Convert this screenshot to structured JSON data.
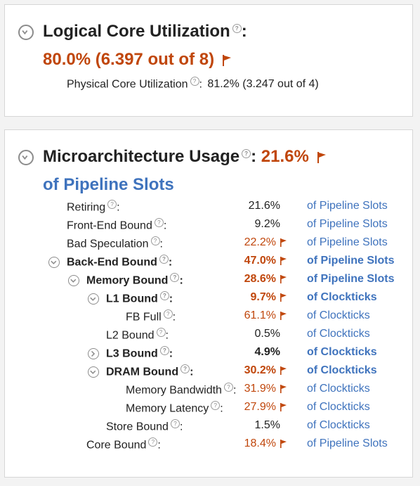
{
  "logical_core": {
    "title": "Logical Core Utilization",
    "colon": ":",
    "value": "80.0% (6.397 out of 8)",
    "physical_label": "Physical Core Utilization",
    "physical_colon": ":",
    "physical_value": "81.2% (3.247 out of 4)"
  },
  "microarch": {
    "title": "Microarchitecture Usage",
    "colon": ":",
    "value": "21.6%",
    "subtitle": "of Pipeline Slots",
    "rows": [
      {
        "label": "Retiring",
        "suffix": ":",
        "value": "21.6%",
        "flagged": false,
        "unit": "of Pipeline Slots",
        "level": 0,
        "bold": false,
        "toggle": "none"
      },
      {
        "label": "Front-End Bound",
        "suffix": ":",
        "value": "9.2%",
        "flagged": false,
        "unit": "of Pipeline Slots",
        "level": 0,
        "bold": false,
        "toggle": "none"
      },
      {
        "label": "Bad Speculation",
        "suffix": ":",
        "value": "22.2%",
        "flagged": true,
        "unit": "of Pipeline Slots",
        "level": 0,
        "bold": false,
        "toggle": "none"
      },
      {
        "label": "Back-End Bound",
        "suffix": ":",
        "value": "47.0%",
        "flagged": true,
        "unit": "of Pipeline Slots",
        "level": 0,
        "bold": true,
        "toggle": "expanded"
      },
      {
        "label": "Memory Bound",
        "suffix": ":",
        "value": "28.6%",
        "flagged": true,
        "unit": "of Pipeline Slots",
        "level": 1,
        "bold": true,
        "toggle": "expanded"
      },
      {
        "label": "L1 Bound",
        "suffix": ":",
        "value": "9.7%",
        "flagged": true,
        "unit": "of Clockticks",
        "level": 2,
        "bold": true,
        "toggle": "expanded"
      },
      {
        "label": "FB Full",
        "suffix": ":",
        "value": "61.1%",
        "flagged": true,
        "unit": "of Clockticks",
        "level": 3,
        "bold": false,
        "toggle": "none"
      },
      {
        "label": "L2 Bound",
        "suffix": ":",
        "value": "0.5%",
        "flagged": false,
        "unit": "of Clockticks",
        "level": 2,
        "bold": false,
        "toggle": "none"
      },
      {
        "label": "L3 Bound",
        "suffix": ":",
        "value": "4.9%",
        "flagged": false,
        "unit": "of Clockticks",
        "level": 2,
        "bold": true,
        "toggle": "collapsed"
      },
      {
        "label": "DRAM Bound",
        "suffix": ":",
        "value": "30.2%",
        "flagged": true,
        "unit": "of Clockticks",
        "level": 2,
        "bold": true,
        "toggle": "expanded"
      },
      {
        "label": "Memory Bandwidth",
        "suffix": ":",
        "value": "31.9%",
        "flagged": true,
        "unit": "of Clockticks",
        "level": 3,
        "bold": false,
        "toggle": "none"
      },
      {
        "label": "Memory Latency",
        "suffix": ":",
        "value": "27.9%",
        "flagged": true,
        "unit": "of Clockticks",
        "level": 3,
        "bold": false,
        "toggle": "none"
      },
      {
        "label": "Store Bound",
        "suffix": ":",
        "value": "1.5%",
        "flagged": false,
        "unit": "of Clockticks",
        "level": 2,
        "bold": false,
        "toggle": "none"
      },
      {
        "label": "Core Bound",
        "suffix": ":",
        "value": "18.4%",
        "flagged": true,
        "unit": "of Pipeline Slots",
        "level": 1,
        "bold": false,
        "toggle": "none"
      }
    ]
  },
  "icons": {
    "help": "question-mark-icon",
    "flag": "flag-icon",
    "expand": "chevron-down-icon",
    "collapse": "chevron-right-icon"
  },
  "colors": {
    "accent": "#c0460b",
    "link": "#3f73bd",
    "toggle": "#8c8c8c"
  }
}
